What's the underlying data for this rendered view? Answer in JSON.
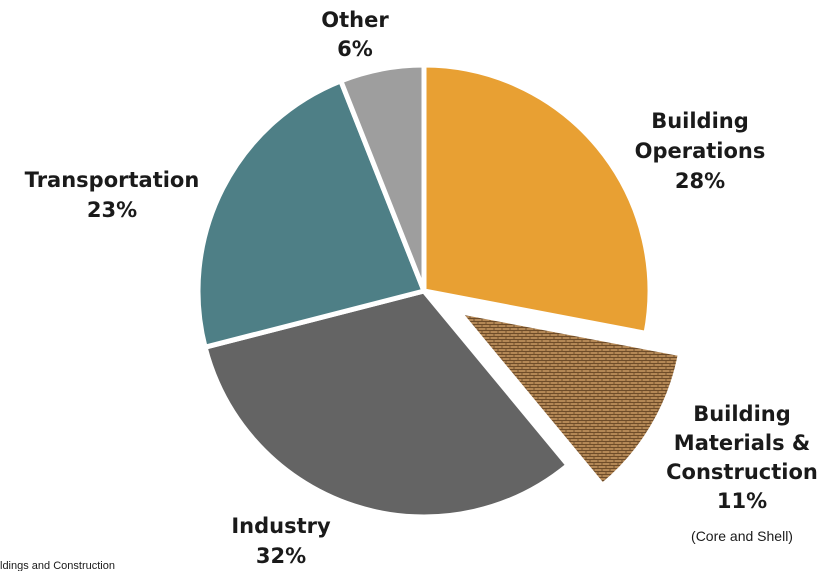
{
  "chart_data": {
    "type": "pie",
    "title": "",
    "slices": [
      {
        "label_lines": [
          "Building",
          "Operations"
        ],
        "value": 28,
        "value_label": "28%",
        "color": "#e8a033",
        "exploded": false
      },
      {
        "label_lines": [
          "Building",
          "Materials &",
          "Construction"
        ],
        "value": 11,
        "value_label": "11%",
        "color": "#a97c4c",
        "pattern": "brick",
        "exploded": true,
        "note": "(Core and Shell)"
      },
      {
        "label_lines": [
          "Industry"
        ],
        "value": 32,
        "value_label": "32%",
        "color": "#646464",
        "exploded": false
      },
      {
        "label_lines": [
          "Transportation"
        ],
        "value": 23,
        "value_label": "23%",
        "color": "#4e7f86",
        "exploded": false
      },
      {
        "label_lines": [
          "Other"
        ],
        "value": 6,
        "value_label": "6%",
        "color": "#9e9e9e",
        "exploded": false
      }
    ],
    "start_angle_deg": 0,
    "direction": "clockwise",
    "source_fragment": "ldings and Construction"
  }
}
